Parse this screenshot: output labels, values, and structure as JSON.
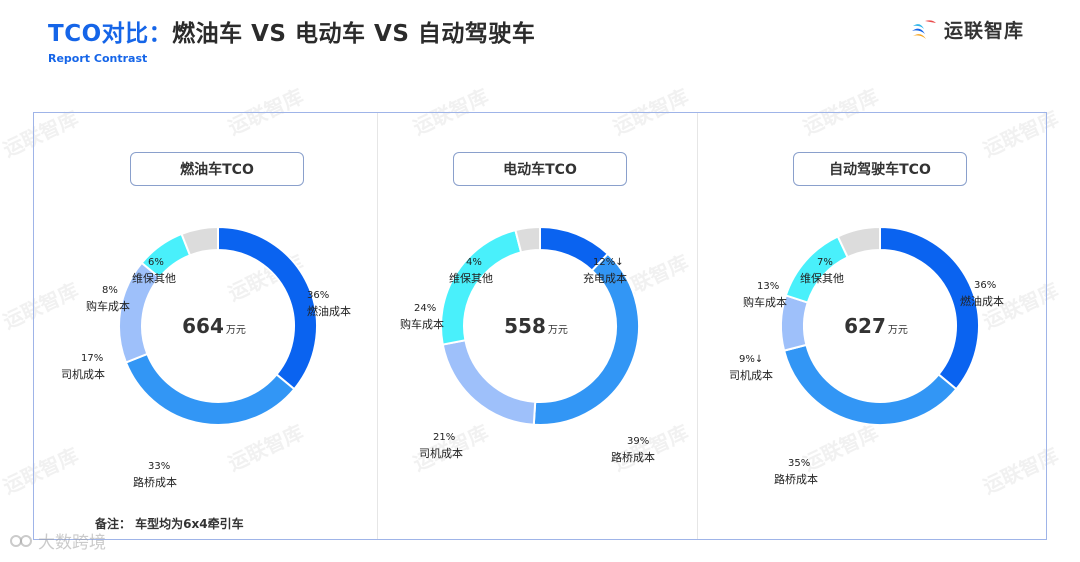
{
  "header": {
    "title_prefix": "TCO对比：",
    "title_rest": "燃油车 VS 电动车 VS 自动驾驶车",
    "subtitle": "Report Contrast",
    "logo_text": "运联智库"
  },
  "watermarks": {
    "repeat": "运联智库",
    "bottom": "大数跨境"
  },
  "colors": {
    "fuel": "#0a63f0",
    "road": "#3296f5",
    "driver": "#9ec0fa",
    "purchase": "#49f0fb",
    "maintenance": "#dcdcdc",
    "charging": "#0a63f0"
  },
  "note": "备注：  车型均为6x4牵引车",
  "chart_data": [
    {
      "type": "pie",
      "title": "燃油车TCO",
      "center_value": "664",
      "center_unit": "万元",
      "slices": [
        {
          "key": "fuel",
          "label": "燃油成本",
          "pct": "36%",
          "value": 36
        },
        {
          "key": "road",
          "label": "路桥成本",
          "pct": "33%",
          "value": 33
        },
        {
          "key": "driver",
          "label": "司机成本",
          "pct": "17%",
          "value": 17
        },
        {
          "key": "purchase",
          "label": "购车成本",
          "pct": "8%",
          "value": 8
        },
        {
          "key": "maintenance",
          "label": "维保其他",
          "pct": "6%",
          "value": 6
        }
      ]
    },
    {
      "type": "pie",
      "title": "电动车TCO",
      "center_value": "558",
      "center_unit": "万元",
      "slices": [
        {
          "key": "charging",
          "label": "充电成本",
          "pct": "12%↓",
          "value": 12
        },
        {
          "key": "road",
          "label": "路桥成本",
          "pct": "39%",
          "value": 39
        },
        {
          "key": "driver",
          "label": "司机成本",
          "pct": "21%",
          "value": 21
        },
        {
          "key": "purchase",
          "label": "购车成本",
          "pct": "24%",
          "value": 24
        },
        {
          "key": "maintenance",
          "label": "维保其他",
          "pct": "4%",
          "value": 4
        }
      ]
    },
    {
      "type": "pie",
      "title": "自动驾驶车TCO",
      "center_value": "627",
      "center_unit": "万元",
      "slices": [
        {
          "key": "fuel",
          "label": "燃油成本",
          "pct": "36%",
          "value": 36
        },
        {
          "key": "road",
          "label": "路桥成本",
          "pct": "35%",
          "value": 35
        },
        {
          "key": "driver",
          "label": "司机成本",
          "pct": "9%↓",
          "value": 9
        },
        {
          "key": "purchase",
          "label": "购车成本",
          "pct": "13%",
          "value": 13
        },
        {
          "key": "maintenance",
          "label": "维保其他",
          "pct": "7%",
          "value": 7
        }
      ]
    }
  ]
}
